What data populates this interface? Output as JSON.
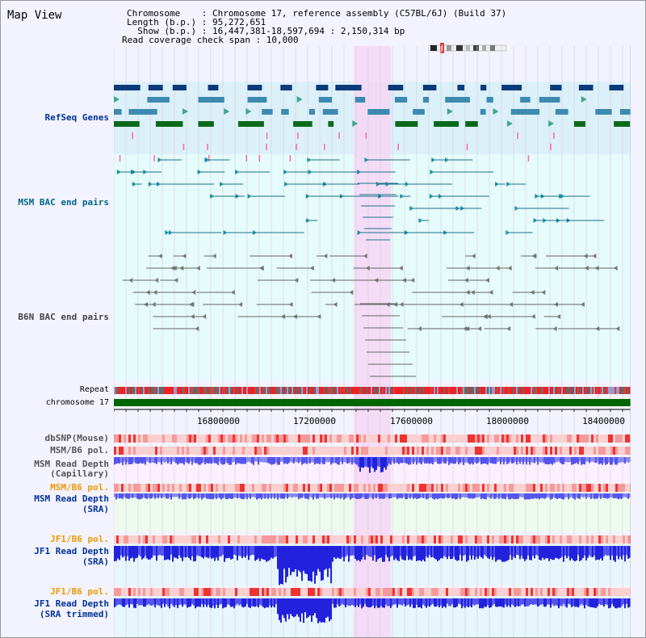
{
  "header": {
    "title": "Map View",
    "chromosome_label": "Chromosome    : Chromosome 17, reference assembly (C57BL/6J) (Build 37)",
    "length_label": "Length (b.p.) : 95,272,651",
    "show_label": "  Show (b.p.) : 16,447,381-18,597,694 : 2,150,314 bp",
    "coverage_label": "Read coverage check span : 10,000"
  },
  "tracks": {
    "refseq": "RefSeq Genes",
    "msm_bac": "MSM BAC end pairs",
    "b6n_bac": "B6N BAC end pairs",
    "repeat": "Repeat",
    "chromosome": "chromosome 17",
    "dbsnp": "dbSNP(Mouse)",
    "msm_b6_pol_1": "MSM/B6 pol.",
    "msm_read_depth_cap_1": "MSM Read Depth",
    "msm_read_depth_cap_2": "(Capillary)",
    "msm_b6_pol_2": "MSM/B6 pol.",
    "msm_read_depth_sra_1": "MSM Read Depth",
    "msm_read_depth_sra_2": "(SRA)",
    "jf1_b6_pol_1": "JF1/B6 pol.",
    "jf1_read_depth_sra_1": "JF1 Read Depth",
    "jf1_read_depth_sra_2": "(SRA)",
    "jf1_b6_pol_2": "JF1/B6 pol.",
    "jf1_read_depth_trim_1": "JF1 Read Depth",
    "jf1_read_depth_trim_2": "(SRA trimmed)"
  },
  "axis": {
    "ticks": [
      "16800000",
      "17200000",
      "17600000",
      "18000000",
      "18400000"
    ]
  },
  "colors": {
    "refseq_bg": "#dcf0fa",
    "bac_bg": "#e6fbfb",
    "highlight": "#f6d6f6",
    "label_blue": "#003399",
    "label_teal": "#006688",
    "label_orange": "#ee9900",
    "label_gray": "#444444",
    "chromosome_bar": "#006600"
  },
  "icons": [
    "ideogram-icon"
  ]
}
